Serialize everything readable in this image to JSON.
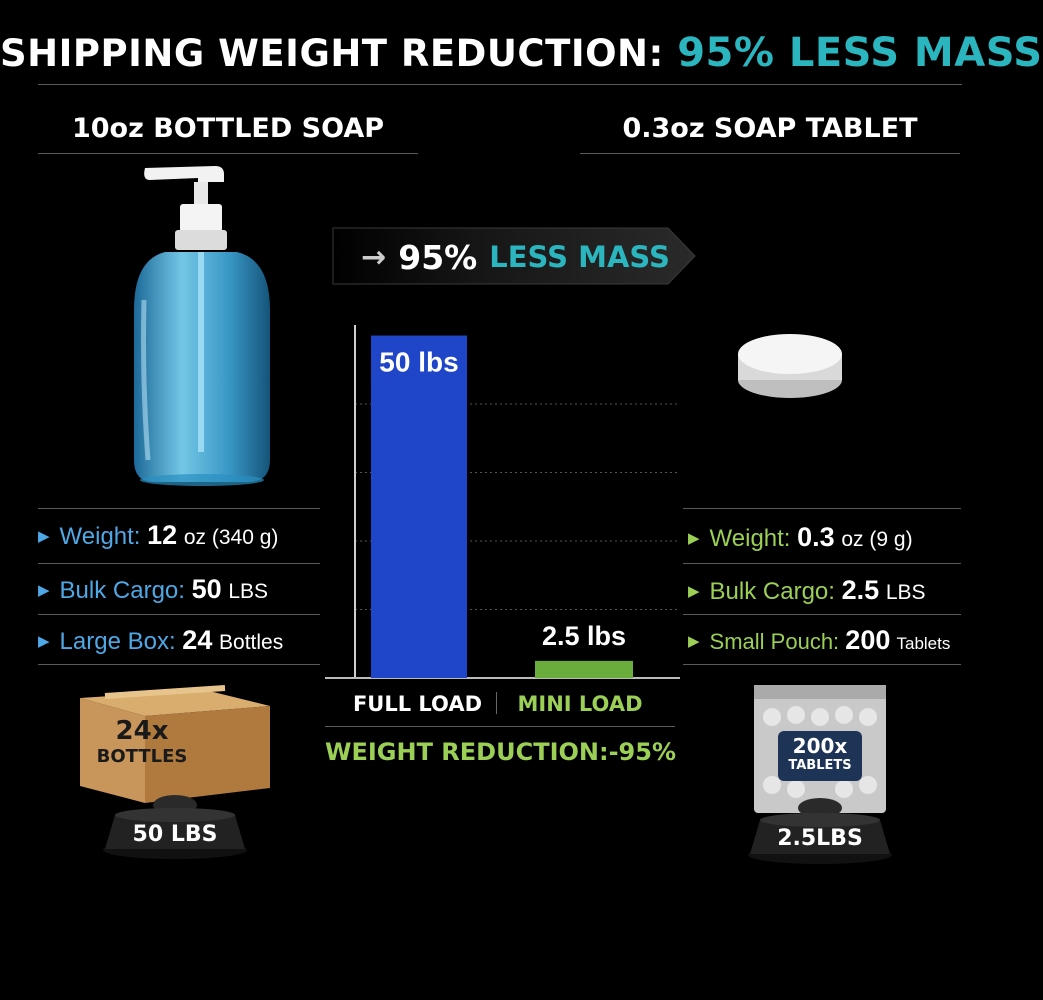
{
  "header": {
    "title_prefix": "SHIPPING WEIGHT REDUCTION:",
    "title_highlight": "95% LESS MASS"
  },
  "left": {
    "heading": "10oz BOTTLED SOAP",
    "stats": [
      {
        "label": "Weight:",
        "value": "12",
        "unit": "oz (340 g)"
      },
      {
        "label": "Bulk Cargo:",
        "value": "50",
        "unit": "LBS"
      },
      {
        "label": "Large Box:",
        "value": "24",
        "unit": "Bottles"
      }
    ],
    "box_label_line1": "24x",
    "box_label_line2": "BOTTLES",
    "scale_label": "50 LBS"
  },
  "right": {
    "heading": "0.3oz SOAP TABLET",
    "stats": [
      {
        "label": "Weight:",
        "value": "0.3",
        "unit": "oz (9 g)"
      },
      {
        "label": "Bulk Cargo:",
        "value": "2.5",
        "unit": "LBS"
      },
      {
        "label": "Small Pouch:",
        "value": "200",
        "unit": "Tablets"
      }
    ],
    "pouch_label_line1": "200x",
    "pouch_label_line2": "TABLETS",
    "scale_label": "2.5LBS"
  },
  "banner": {
    "arrow": "→",
    "pct": "95%",
    "text": "LESS MASS"
  },
  "chart_data": {
    "type": "bar",
    "categories": [
      "FULL LOAD",
      "MINI LOAD"
    ],
    "values": [
      50,
      2.5
    ],
    "data_labels": [
      "50 lbs",
      "2.5 lbs"
    ],
    "ylim": [
      0,
      53
    ],
    "grid": true,
    "colors": [
      "#1f45c9",
      "#6aad3c"
    ]
  },
  "reduction_text": "WEIGHT REDUCTION:-95%",
  "colors": {
    "accent_teal": "#2bb5bf",
    "accent_blue": "#4fa8e6",
    "accent_green": "#9bcf55"
  }
}
